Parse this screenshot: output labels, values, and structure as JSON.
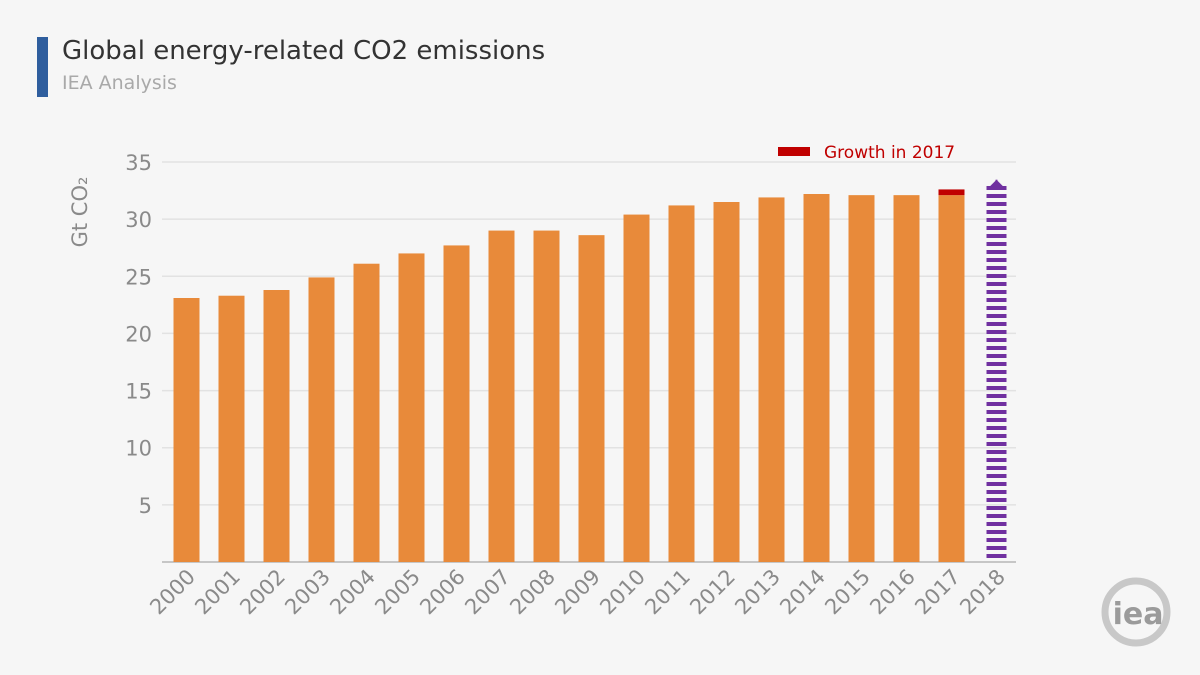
{
  "header": {
    "title": "Global energy-related CO2 emissions",
    "subtitle": "IEA Analysis"
  },
  "logo": {
    "text": "iea",
    "color": "#9b9b9b"
  },
  "colors": {
    "bar": "#e88a3a",
    "growth": "#c00000",
    "projection": "#7030a0",
    "accent": "#2f5e9e",
    "grid": "#e2e2e2"
  },
  "chart_data": {
    "type": "bar",
    "ylabel": "Gt CO₂",
    "ylim": [
      0,
      35
    ],
    "yticks": [
      5,
      10,
      15,
      20,
      25,
      30,
      35
    ],
    "grid": true,
    "legend_position": "top-right",
    "categories": [
      "2000",
      "2001",
      "2002",
      "2003",
      "2004",
      "2005",
      "2006",
      "2007",
      "2008",
      "2009",
      "2010",
      "2011",
      "2012",
      "2013",
      "2014",
      "2015",
      "2016",
      "2017",
      "2018"
    ],
    "series": [
      {
        "values": [
          23.1,
          23.3,
          23.8,
          24.9,
          26.1,
          27.0,
          27.7,
          29.0,
          29.0,
          28.6,
          30.4,
          31.2,
          31.5,
          31.9,
          32.2,
          32.1,
          32.1,
          32.1,
          null
        ]
      },
      {
        "name": "Growth in 2017",
        "values": [
          null,
          null,
          null,
          null,
          null,
          null,
          null,
          null,
          null,
          null,
          null,
          null,
          null,
          null,
          null,
          null,
          null,
          0.5,
          null
        ]
      },
      {
        "values": [
          null,
          null,
          null,
          null,
          null,
          null,
          null,
          null,
          null,
          null,
          null,
          null,
          null,
          null,
          null,
          null,
          null,
          null,
          33.1
        ]
      }
    ]
  }
}
